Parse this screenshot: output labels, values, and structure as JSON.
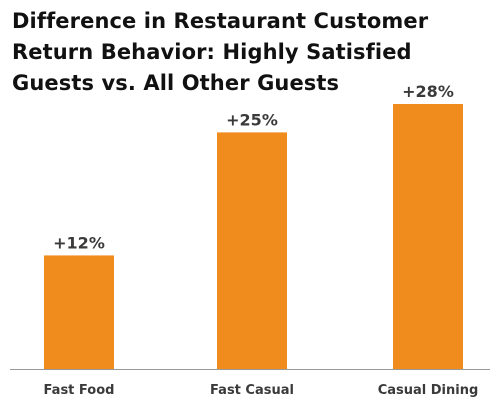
{
  "chart_data": {
    "type": "bar",
    "title": "Difference in Restaurant Customer Return Behavior: Highly Satisfied Guests vs. All Other Guests",
    "categories": [
      "Fast Food",
      "Fast Casual",
      "Casual Dining"
    ],
    "values": [
      12,
      25,
      28
    ],
    "data_labels": [
      "+12%",
      "+25%",
      "+28%"
    ],
    "xlabel": "",
    "ylabel": "",
    "ylim": [
      0,
      28
    ],
    "grid": false,
    "legend": "none",
    "bar_color": "#F08C1E",
    "axis_color": "#9a9a9a",
    "label_color": "#3a3a3a"
  }
}
